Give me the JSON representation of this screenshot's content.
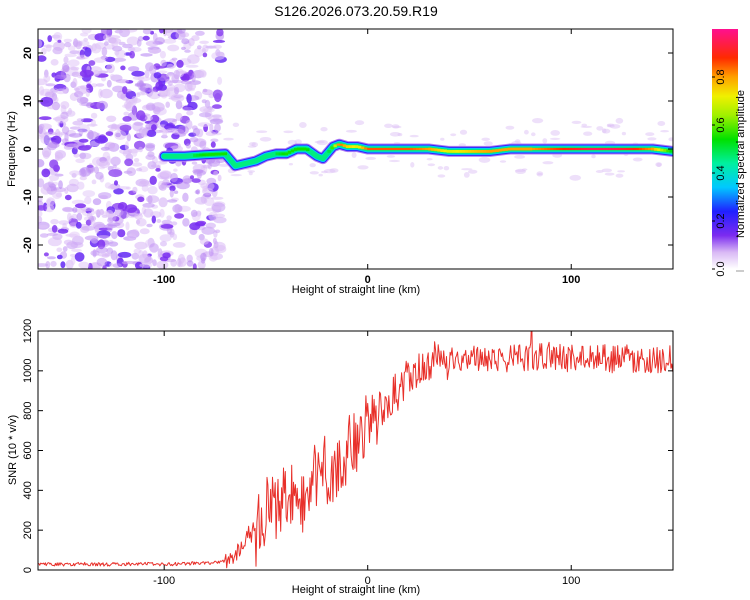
{
  "title": "S126.2026.073.20.59.R19",
  "chart_data": [
    {
      "type": "heatmap",
      "xlabel": "Height of straight line (km)",
      "ylabel": "Frequency (Hz)",
      "xlim": [
        -162,
        150
      ],
      "ylim": [
        -25,
        25
      ],
      "xticks": [
        -100,
        0,
        100
      ],
      "xtick_labels": [
        "-100",
        "0",
        "100"
      ],
      "yticks": [
        -20,
        -10,
        0,
        10,
        20
      ],
      "ytick_labels": [
        "-20",
        "-10",
        "0",
        "10",
        "20"
      ],
      "colorbar": {
        "label": "Normalized spectral amplitude",
        "range": [
          0.0,
          1.0
        ],
        "ticks": [
          0.0,
          0.2,
          0.4,
          0.6,
          0.8
        ],
        "tick_labels": [
          "0.0",
          "0.2",
          "0.4",
          "0.6",
          "0.8"
        ]
      },
      "ridge": {
        "x": [
          -100,
          -90,
          -80,
          -70,
          -65,
          -60,
          -55,
          -50,
          -45,
          -40,
          -35,
          -30,
          -25,
          -22,
          -20,
          -17,
          -14,
          -10,
          -5,
          0,
          10,
          20,
          30,
          40,
          50,
          60,
          70,
          80,
          90,
          100,
          110,
          120,
          130,
          140,
          150
        ],
        "freq": [
          -1.5,
          -1.5,
          -1.2,
          -1.0,
          -3.5,
          -3.0,
          -2.5,
          -1.5,
          -1.0,
          -1.0,
          0.0,
          0.0,
          -1.5,
          -2.0,
          -1.0,
          0.5,
          1.0,
          0.5,
          0.5,
          0.0,
          0.0,
          0.0,
          0.0,
          -0.5,
          -0.5,
          -0.5,
          0.0,
          0.0,
          0.0,
          0.0,
          0.0,
          0.0,
          0.0,
          0.0,
          -0.5
        ],
        "amplitude": [
          0.45,
          0.45,
          0.55,
          0.55,
          0.35,
          0.45,
          0.4,
          0.45,
          0.5,
          0.55,
          0.55,
          0.55,
          0.4,
          0.35,
          0.45,
          0.6,
          0.85,
          0.75,
          0.7,
          0.85,
          0.85,
          0.85,
          0.8,
          0.7,
          0.75,
          0.8,
          0.8,
          0.8,
          0.85,
          0.9,
          0.95,
          0.95,
          0.9,
          0.8,
          0.5
        ]
      },
      "noise_region_x": [
        -162,
        -72
      ],
      "noise_amplitude": [
        0.05,
        0.2
      ]
    },
    {
      "type": "line",
      "xlabel": "Height of straight line (km)",
      "ylabel": "SNR (10 * v/v)",
      "xlim": [
        -162,
        150
      ],
      "ylim": [
        0,
        1200
      ],
      "xticks": [
        -100,
        0,
        100
      ],
      "xtick_labels": [
        "-100",
        "0",
        "100"
      ],
      "yticks": [
        0,
        200,
        400,
        600,
        800,
        1000,
        1200
      ],
      "ytick_labels": [
        "0",
        "200",
        "400",
        "600",
        "800",
        "1000",
        "1200"
      ],
      "series": [
        {
          "name": "SNR",
          "color": "#e8302a",
          "x": [
            -162,
            -150,
            -140,
            -130,
            -120,
            -110,
            -100,
            -90,
            -80,
            -75,
            -70,
            -65,
            -60,
            -55,
            -50,
            -45,
            -40,
            -35,
            -30,
            -25,
            -22,
            -20,
            -15,
            -10,
            -5,
            0,
            5,
            10,
            15,
            20,
            25,
            30,
            35,
            40,
            50,
            60,
            70,
            80,
            90,
            100,
            110,
            120,
            130,
            140,
            150
          ],
          "values": [
            30,
            28,
            30,
            28,
            30,
            30,
            30,
            32,
            35,
            38,
            45,
            80,
            150,
            250,
            300,
            330,
            400,
            380,
            420,
            480,
            550,
            450,
            500,
            600,
            650,
            750,
            800,
            850,
            900,
            950,
            980,
            1020,
            1040,
            1050,
            1060,
            1070,
            1060,
            1070,
            1080,
            1060,
            1070,
            1060,
            1060,
            1050,
            1060
          ]
        }
      ]
    }
  ]
}
